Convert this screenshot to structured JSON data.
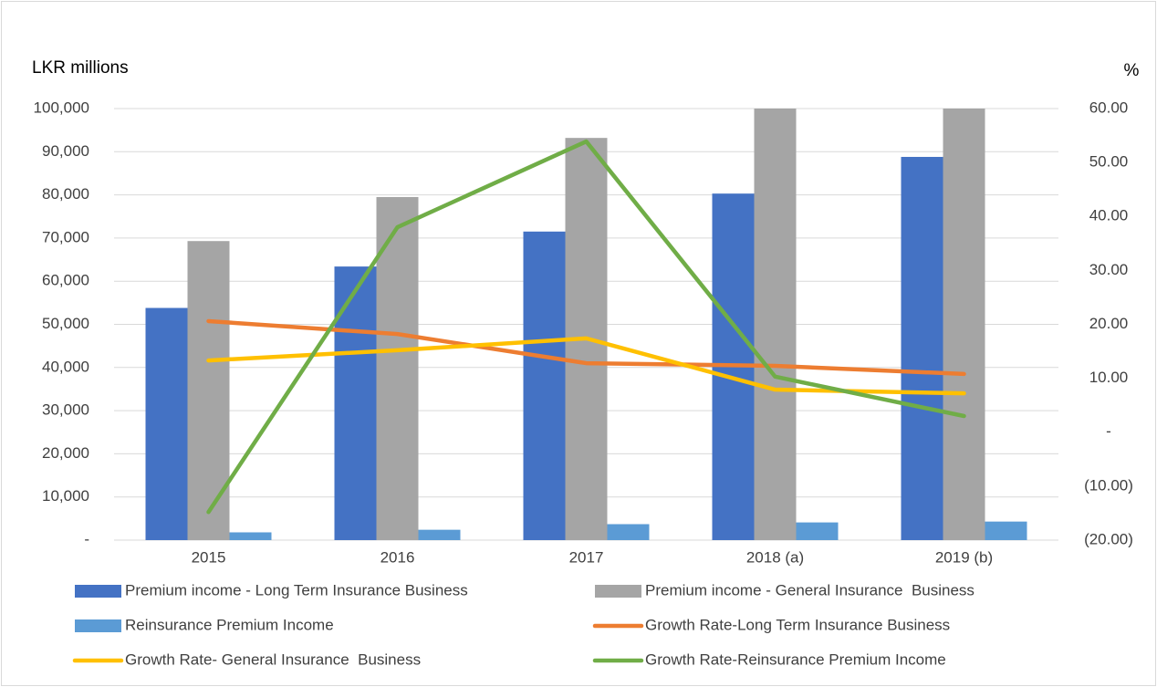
{
  "chart_data": {
    "type": "bar+line",
    "y_label": "LKR millions",
    "y2_label": "%",
    "categories": [
      "2015",
      "2016",
      "2017",
      "2018 (a)",
      "2019 (b)"
    ],
    "ylim": [
      0,
      100000
    ],
    "yticks": [
      {
        "value": 0,
        "label": "-"
      },
      {
        "value": 10000,
        "label": "10,000"
      },
      {
        "value": 20000,
        "label": "20,000"
      },
      {
        "value": 30000,
        "label": "30,000"
      },
      {
        "value": 40000,
        "label": "40,000"
      },
      {
        "value": 50000,
        "label": "50,000"
      },
      {
        "value": 60000,
        "label": "60,000"
      },
      {
        "value": 70000,
        "label": "70,000"
      },
      {
        "value": 80000,
        "label": "80,000"
      },
      {
        "value": 90000,
        "label": "90,000"
      },
      {
        "value": 100000,
        "label": "100,000"
      }
    ],
    "y2lim": [
      -20,
      60
    ],
    "y2ticks": [
      {
        "value": -20,
        "label": "(20.00)"
      },
      {
        "value": -10,
        "label": "(10.00)"
      },
      {
        "value": 0,
        "label": "-"
      },
      {
        "value": 10,
        "label": "10.00"
      },
      {
        "value": 20,
        "label": "20.00"
      },
      {
        "value": 30,
        "label": "30.00"
      },
      {
        "value": 40,
        "label": "40.00"
      },
      {
        "value": 50,
        "label": "50.00"
      },
      {
        "value": 60,
        "label": "60.00"
      }
    ],
    "grid": true,
    "series": [
      {
        "name": "Premium income - Long Term Insurance Business",
        "type": "bar",
        "color": "#4472c4",
        "values": [
          53800,
          63400,
          71500,
          80300,
          88800
        ]
      },
      {
        "name": "Premium income - General Insurance  Business",
        "type": "bar",
        "color": "#a5a5a5",
        "values": [
          69300,
          79500,
          93200,
          100000,
          100000
        ]
      },
      {
        "name": "Reinsurance Premium Income",
        "type": "bar",
        "color": "#5b9bd5",
        "values": [
          1800,
          2400,
          3700,
          4100,
          4300
        ]
      },
      {
        "name": "Growth Rate-Long Term Insurance Business",
        "type": "line",
        "axis": "y2",
        "color": "#ed7d31",
        "values": [
          20.6,
          18.2,
          12.8,
          12.3,
          10.8
        ]
      },
      {
        "name": "Growth Rate- General Insurance  Business",
        "type": "line",
        "axis": "y2",
        "color": "#ffc000",
        "values": [
          13.3,
          15.2,
          17.4,
          7.9,
          7.2
        ]
      },
      {
        "name": "Growth Rate-Reinsurance Premium Income",
        "type": "line",
        "axis": "y2",
        "color": "#70ad47",
        "values": [
          -14.8,
          38.0,
          53.9,
          10.3,
          3.0
        ]
      }
    ]
  }
}
